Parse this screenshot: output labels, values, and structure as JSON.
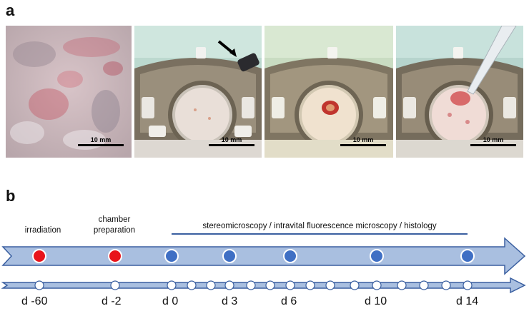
{
  "panel_a": {
    "letter": "a",
    "scale_label": "10 mm"
  },
  "panel_b": {
    "letter": "b",
    "label_irradiation": "irradiation",
    "label_chamber": "chamber\npreparation",
    "label_methods": "stereomicroscopy / intravital fluorescence microscopy / histology",
    "days": [
      "d -60",
      "d -2",
      "d 0",
      "d 3",
      "d 6",
      "d 10",
      "d 14"
    ]
  },
  "colors": {
    "arrow_fill": "#a9bfe0",
    "arrow_stroke": "#3a5fa0",
    "dot_red": "#e8141b",
    "dot_blue": "#3f6fc4",
    "method_line": "#3a5fa0"
  }
}
